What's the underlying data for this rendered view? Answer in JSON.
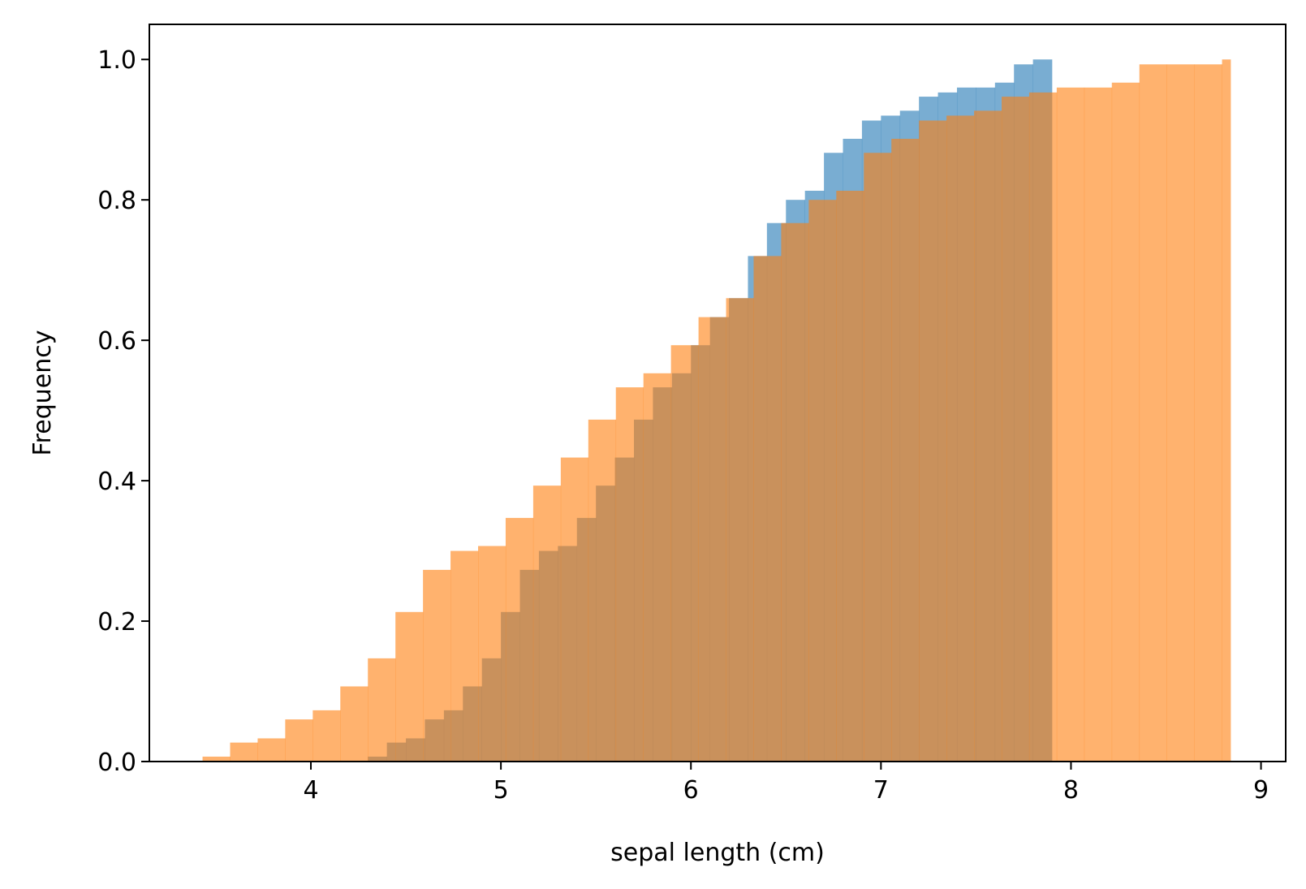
{
  "chart_data": {
    "type": "bar",
    "subtype": "cumulative-histogram",
    "title": "",
    "xlabel": "sepal length (cm)",
    "ylabel": "Frequency",
    "xlim": [
      3.15,
      9.13
    ],
    "ylim": [
      0,
      1.05
    ],
    "x_ticks": [
      4,
      5,
      6,
      7,
      8,
      9
    ],
    "y_ticks": [
      0.0,
      0.2,
      0.4,
      0.6,
      0.8,
      1.0
    ],
    "x_tick_labels": [
      "4",
      "5",
      "6",
      "7",
      "8",
      "9"
    ],
    "y_tick_labels": [
      "0.0",
      "0.2",
      "0.4",
      "0.6",
      "0.8",
      "1.0"
    ],
    "grid": false,
    "legend": null,
    "series": [
      {
        "color": "#1f77b4",
        "opacity": 0.6,
        "bin_edges": [
          4.3,
          4.4,
          4.5,
          4.6,
          4.7,
          4.8,
          4.9,
          5.0,
          5.1,
          5.2,
          5.3,
          5.4,
          5.5,
          5.6,
          5.7,
          5.8,
          5.9,
          6.0,
          6.1,
          6.2,
          6.3,
          6.4,
          6.5,
          6.6,
          6.7,
          6.8,
          6.9,
          7.0,
          7.1,
          7.2,
          7.3,
          7.4,
          7.5,
          7.6,
          7.7,
          7.8,
          7.9
        ],
        "values": [
          0.007,
          0.027,
          0.033,
          0.06,
          0.073,
          0.107,
          0.147,
          0.213,
          0.273,
          0.3,
          0.307,
          0.347,
          0.393,
          0.433,
          0.487,
          0.533,
          0.553,
          0.593,
          0.633,
          0.66,
          0.72,
          0.767,
          0.8,
          0.813,
          0.867,
          0.887,
          0.913,
          0.92,
          0.927,
          0.947,
          0.953,
          0.96,
          0.96,
          0.967,
          0.993,
          1.0
        ]
      },
      {
        "color": "#ff7f0e",
        "opacity": 0.6,
        "bin_edges": [
          3.43,
          3.575,
          3.72,
          3.865,
          4.01,
          4.155,
          4.3,
          4.445,
          4.59,
          4.735,
          4.88,
          5.025,
          5.17,
          5.315,
          5.46,
          5.605,
          5.75,
          5.895,
          6.04,
          6.185,
          6.33,
          6.475,
          6.62,
          6.765,
          6.91,
          7.055,
          7.2,
          7.345,
          7.49,
          7.635,
          7.78,
          7.925,
          8.07,
          8.215,
          8.36,
          8.505,
          8.65,
          8.795,
          8.84
        ],
        "values": [
          0.007,
          0.027,
          0.033,
          0.06,
          0.073,
          0.107,
          0.147,
          0.213,
          0.273,
          0.3,
          0.307,
          0.347,
          0.393,
          0.433,
          0.487,
          0.533,
          0.553,
          0.593,
          0.633,
          0.66,
          0.72,
          0.767,
          0.8,
          0.813,
          0.867,
          0.887,
          0.913,
          0.92,
          0.927,
          0.947,
          0.953,
          0.96,
          0.96,
          0.967,
          0.993,
          0.993,
          0.993,
          1.0
        ]
      }
    ]
  }
}
